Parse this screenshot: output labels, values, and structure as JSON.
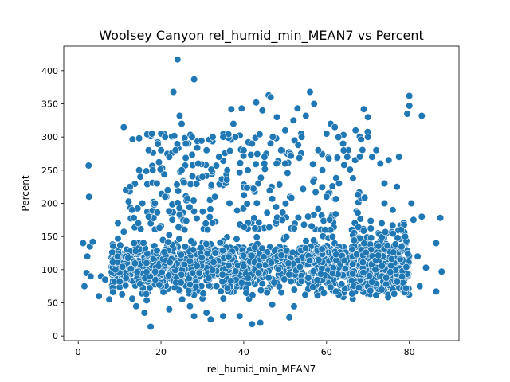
{
  "chart_data": {
    "type": "scatter",
    "title": "Woolsey Canyon rel_humid_min_MEAN7 vs Percent",
    "xlabel": "rel_humid_min_MEAN7",
    "ylabel": "Percent",
    "xlim": [
      -3.5,
      92
    ],
    "ylim": [
      -7,
      437
    ],
    "xticks": [
      0,
      20,
      40,
      60,
      80
    ],
    "yticks": [
      0,
      50,
      100,
      150,
      200,
      250,
      300,
      350,
      400
    ],
    "x_tick_labels": [
      "0",
      "20",
      "40",
      "60",
      "80"
    ],
    "y_tick_labels": [
      "0",
      "50",
      "100",
      "150",
      "200",
      "250",
      "300",
      "350",
      "400"
    ],
    "grid": false,
    "legend": "none",
    "marker_color": "#1f77b4",
    "density_bands": {
      "core_x": [
        8,
        80
      ],
      "core_y": [
        40,
        160
      ],
      "upper_x": [
        12,
        70
      ],
      "upper_y": [
        160,
        310
      ]
    },
    "points": [
      [
        1.2,
        140
      ],
      [
        1.5,
        75
      ],
      [
        2.0,
        95
      ],
      [
        2.2,
        120
      ],
      [
        2.5,
        257
      ],
      [
        2.6,
        210
      ],
      [
        2.8,
        135
      ],
      [
        3.0,
        90
      ],
      [
        3.5,
        142
      ],
      [
        5.0,
        60
      ],
      [
        5.5,
        90
      ],
      [
        6.5,
        85
      ],
      [
        7.5,
        55
      ],
      [
        9.0,
        100
      ],
      [
        9.5,
        120
      ],
      [
        9.6,
        170
      ],
      [
        10.0,
        82
      ],
      [
        11.0,
        157
      ],
      [
        11.0,
        315
      ],
      [
        11.5,
        220
      ],
      [
        12.5,
        225
      ],
      [
        13.0,
        190
      ],
      [
        13.5,
        140
      ],
      [
        14.0,
        45
      ],
      [
        14.5,
        170
      ],
      [
        15.0,
        240
      ],
      [
        15.5,
        200
      ],
      [
        16.0,
        35
      ],
      [
        16.5,
        110
      ],
      [
        17.0,
        180
      ],
      [
        17.0,
        280
      ],
      [
        17.5,
        14
      ],
      [
        17.8,
        305
      ],
      [
        18.0,
        250
      ],
      [
        18.5,
        200
      ],
      [
        19.0,
        230
      ],
      [
        19.5,
        262
      ],
      [
        20.0,
        280
      ],
      [
        20.0,
        305
      ],
      [
        21.0,
        300
      ],
      [
        21.0,
        210
      ],
      [
        22.0,
        40
      ],
      [
        22.0,
        270
      ],
      [
        23.0,
        368
      ],
      [
        23.5,
        280
      ],
      [
        24.0,
        417
      ],
      [
        24.5,
        332
      ],
      [
        25.0,
        250
      ],
      [
        25.0,
        320
      ],
      [
        26.0,
        290
      ],
      [
        27.0,
        45
      ],
      [
        27.5,
        300
      ],
      [
        28.0,
        387
      ],
      [
        28.0,
        30
      ],
      [
        29.0,
        260
      ],
      [
        30.0,
        240
      ],
      [
        31.0,
        35
      ],
      [
        31.0,
        280
      ],
      [
        32.0,
        25
      ],
      [
        32.5,
        300
      ],
      [
        33.0,
        210
      ],
      [
        34.0,
        270
      ],
      [
        35.0,
        30
      ],
      [
        35.0,
        300
      ],
      [
        36.0,
        250
      ],
      [
        37.0,
        342
      ],
      [
        37.5,
        320
      ],
      [
        38.0,
        300
      ],
      [
        39.0,
        30
      ],
      [
        39.5,
        343
      ],
      [
        40.0,
        280
      ],
      [
        41.0,
        250
      ],
      [
        42.0,
        18
      ],
      [
        42.0,
        290
      ],
      [
        43.0,
        352
      ],
      [
        43.5,
        230
      ],
      [
        44.0,
        20
      ],
      [
        44.5,
        340
      ],
      [
        45.0,
        270
      ],
      [
        46.0,
        363
      ],
      [
        46.5,
        360
      ],
      [
        47.0,
        300
      ],
      [
        48.0,
        330
      ],
      [
        49.0,
        280
      ],
      [
        50.0,
        310
      ],
      [
        50.0,
        260
      ],
      [
        51.0,
        28
      ],
      [
        52.0,
        325
      ],
      [
        53.0,
        343
      ],
      [
        54.0,
        300
      ],
      [
        55.0,
        332
      ],
      [
        56.0,
        368
      ],
      [
        57.0,
        350
      ],
      [
        58.0,
        280
      ],
      [
        59.0,
        250
      ],
      [
        60.0,
        305
      ],
      [
        60.0,
        210
      ],
      [
        61.0,
        320
      ],
      [
        62.0,
        315
      ],
      [
        63.0,
        230
      ],
      [
        64.0,
        290
      ],
      [
        65.0,
        270
      ],
      [
        67.0,
        310
      ],
      [
        69.0,
        342
      ],
      [
        70.0,
        330
      ],
      [
        70.0,
        300
      ],
      [
        71.0,
        270
      ],
      [
        72.0,
        280
      ],
      [
        73.0,
        260
      ],
      [
        74.0,
        230
      ],
      [
        74.0,
        200
      ],
      [
        75.0,
        265
      ],
      [
        76.0,
        190
      ],
      [
        77.0,
        225
      ],
      [
        77.5,
        270
      ],
      [
        78.0,
        160
      ],
      [
        79.0,
        150
      ],
      [
        79.5,
        335
      ],
      [
        80.0,
        362
      ],
      [
        80.0,
        347
      ],
      [
        80.5,
        200
      ],
      [
        81.0,
        175
      ],
      [
        82.0,
        120
      ],
      [
        82.5,
        75
      ],
      [
        83.0,
        332
      ],
      [
        83.0,
        180
      ],
      [
        84.0,
        103
      ],
      [
        86.5,
        140
      ],
      [
        86.5,
        67
      ],
      [
        87.5,
        178
      ],
      [
        87.8,
        97
      ]
    ]
  }
}
